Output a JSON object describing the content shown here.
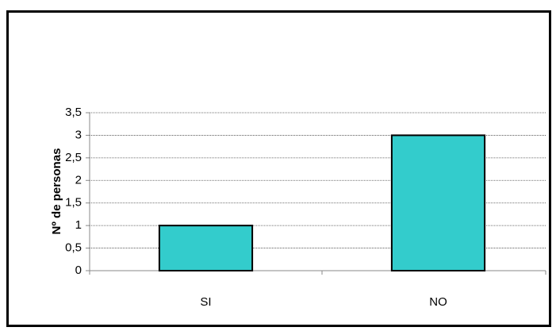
{
  "chart_data": {
    "type": "bar",
    "y_axis_label": "Nº de personas",
    "categories": [
      "SI",
      "NO"
    ],
    "values": [
      1,
      3
    ],
    "color": "#33cccc",
    "ylim": [
      0,
      3.5
    ],
    "yticks": [
      0,
      {
        "value": 0.5,
        "label": "0,5"
      },
      1,
      {
        "value": 1.5,
        "label": "1,5"
      },
      2,
      {
        "value": 2.5,
        "label": "2,5"
      },
      3,
      {
        "value": 3.5,
        "label": "3,5"
      }
    ],
    "grid": true
  }
}
